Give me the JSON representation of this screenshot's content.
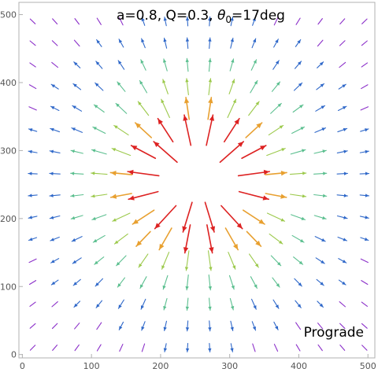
{
  "chart_data": {
    "type": "vector-field",
    "title_prefix": "a=0.8, Q=0.3, ",
    "title_theta": "θ",
    "title_sub": "0",
    "title_suffix": "=17deg",
    "annotation": "Prograde",
    "xlim": [
      -5,
      510
    ],
    "ylim": [
      -5,
      518
    ],
    "xticks": [
      "0",
      "100",
      "200",
      "300",
      "400",
      "500"
    ],
    "yticks": [
      "0",
      "100",
      "200",
      "300",
      "400",
      "500"
    ],
    "xtick_values": [
      0,
      100,
      200,
      300,
      400,
      500
    ],
    "ytick_values": [
      0,
      100,
      200,
      300,
      400,
      500
    ],
    "grid": false,
    "field": {
      "center": [
        255,
        255
      ],
      "shadow_radius": 55,
      "grid_x": [
        15,
        47,
        79,
        111,
        143,
        175,
        207,
        239,
        271,
        303,
        335,
        367,
        399,
        431,
        463,
        495
      ],
      "grid_y": [
        10,
        42,
        74,
        106,
        138,
        170,
        202,
        234,
        266,
        298,
        330,
        362,
        394,
        426,
        458,
        490
      ],
      "flow": "outward"
    },
    "colors": {
      "weak": "#8b2fc9",
      "low": "#2f68c9",
      "mid": "#5bbf8f",
      "midhigh": "#9cc94b",
      "high": "#e8a030",
      "strong": "#dd2222"
    }
  }
}
